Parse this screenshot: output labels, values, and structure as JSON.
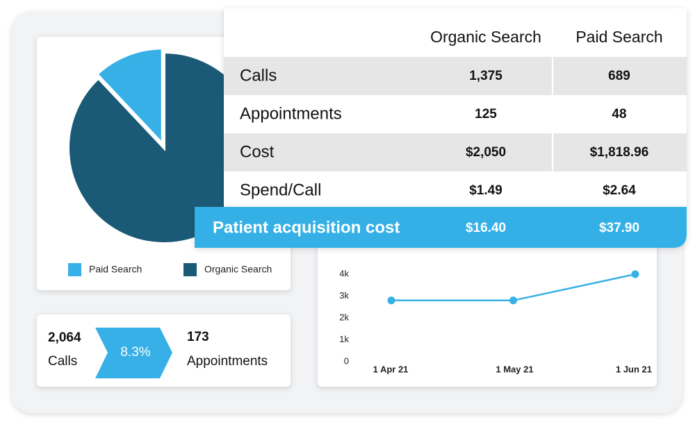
{
  "chart_data": [
    {
      "type": "pie",
      "categories": [
        "Paid Search",
        "Organic Search"
      ],
      "values": [
        12,
        88
      ],
      "colors": [
        "#36b0e6",
        "#1b5a77"
      ]
    },
    {
      "type": "line",
      "categories": [
        "1 Apr 21",
        "1 May 21",
        "1 Jun 21"
      ],
      "values": [
        2800,
        2800,
        4000
      ],
      "color": "#36b0e6",
      "ylim": [
        0,
        4000
      ],
      "yticks": [
        0,
        {
          "value": 1000,
          "label": "1k"
        },
        {
          "value": 2000,
          "label": "2k"
        },
        {
          "value": 3000,
          "label": "3k"
        },
        {
          "value": 4000,
          "label": "4k"
        }
      ]
    }
  ],
  "table": {
    "columns": [
      "Organic Search",
      "Paid Search"
    ],
    "rows": [
      [
        "Calls",
        "1,375",
        "689"
      ],
      [
        "Appointments",
        "125",
        "48"
      ],
      [
        "Cost",
        "$2,050",
        "$1,818.96"
      ],
      [
        "Spend/Call",
        "$1.49",
        "$2.64"
      ]
    ],
    "highlight": [
      "Patient acquisition cost",
      "$16.40",
      "$37.90"
    ]
  },
  "kpi": {
    "calls": "2,064",
    "calls_label": "Calls",
    "rate": "8.3%",
    "appointments": "173",
    "appointments_label": "Appointments"
  }
}
